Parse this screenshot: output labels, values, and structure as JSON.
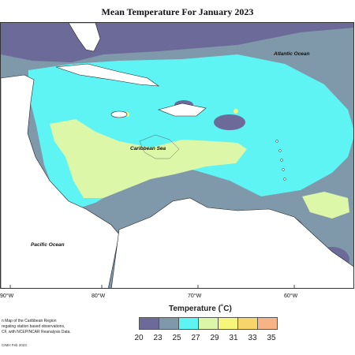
{
  "title": "Mean Temperature For January 2023",
  "labels": {
    "atlantic": "Atlantic Ocean",
    "caribbean": "Caribbean Sea",
    "pacific": "Pacific Ocean"
  },
  "longitudes": [
    "90°W",
    "80°W",
    "70°W",
    "60°W"
  ],
  "legend": {
    "title": "Temperature (˚C)",
    "ticks": [
      "20",
      "23",
      "25",
      "27",
      "29",
      "31",
      "33",
      "35"
    ],
    "colors": [
      "#6b6a99",
      "#7f99aa",
      "#5ef4f4",
      "#dcf7a8",
      "#f6f67a",
      "#f6d56b",
      "#f5b386",
      "#f0a6a0"
    ]
  },
  "caption": {
    "line1": "n Map of the Caribbean Region",
    "line2": "regating station based observations,",
    "line3": "CF, with NCEP/NCAR Reanalysis Data."
  },
  "credit": "CIMH Feb 2023"
}
